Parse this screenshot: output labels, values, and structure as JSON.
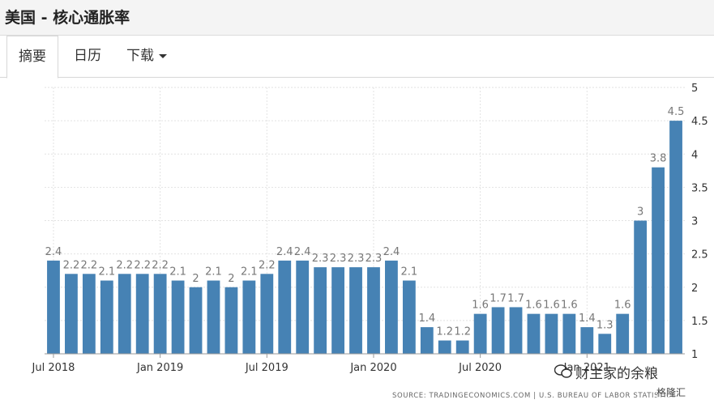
{
  "page": {
    "title": "美国 - 核心通胀率"
  },
  "tabs": [
    {
      "label": "摘要",
      "active": true
    },
    {
      "label": "日历",
      "active": false
    },
    {
      "label": "下载",
      "active": false
    }
  ],
  "chart_data": {
    "type": "bar",
    "title": "",
    "xlabel": "",
    "ylabel": "",
    "ylim": [
      1,
      5
    ],
    "y_ticks": [
      1,
      1.5,
      2,
      2.5,
      3,
      3.5,
      4,
      4.5,
      5
    ],
    "y_axis_side": "right",
    "grid": true,
    "bar_color": "#4682b4",
    "categories": [
      "2018-07",
      "2018-08",
      "2018-09",
      "2018-10",
      "2018-11",
      "2018-12",
      "2019-01",
      "2019-02",
      "2019-03",
      "2019-04",
      "2019-05",
      "2019-06",
      "2019-07",
      "2019-08",
      "2019-09",
      "2019-10",
      "2019-11",
      "2019-12",
      "2020-01",
      "2020-02",
      "2020-03",
      "2020-04",
      "2020-05",
      "2020-06",
      "2020-07",
      "2020-08",
      "2020-09",
      "2020-10",
      "2020-11",
      "2020-12",
      "2021-01",
      "2021-02",
      "2021-03",
      "2021-04",
      "2021-05",
      "2021-06"
    ],
    "values": [
      2.4,
      2.2,
      2.2,
      2.1,
      2.2,
      2.2,
      2.2,
      2.1,
      2.0,
      2.1,
      2.0,
      2.1,
      2.2,
      2.4,
      2.4,
      2.3,
      2.3,
      2.3,
      2.3,
      2.4,
      2.1,
      1.4,
      1.2,
      1.2,
      1.6,
      1.7,
      1.7,
      1.6,
      1.6,
      1.6,
      1.4,
      1.3,
      1.6,
      3.0,
      3.8,
      4.5
    ],
    "data_labels": [
      "2.4",
      "2.2",
      "2.2",
      "2.1",
      "2.2",
      "2.2",
      "2.2",
      "2.1",
      "2",
      "2.1",
      "2",
      "2.1",
      "2.2",
      "2.4",
      "2.4",
      "2.3",
      "2.3",
      "2.3",
      "2.3",
      "2.4",
      "2.1",
      "1.4",
      "1.2",
      "1.2",
      "1.6",
      "1.7",
      "1.7",
      "1.6",
      "1.6",
      "1.6",
      "1.4",
      "1.3",
      "1.6",
      "3",
      "3.8",
      "4.5"
    ],
    "x_tick_labels": [
      {
        "index": 0,
        "label": "Jul 2018"
      },
      {
        "index": 6,
        "label": "Jan 2019"
      },
      {
        "index": 12,
        "label": "Jul 2019"
      },
      {
        "index": 18,
        "label": "Jan 2020"
      },
      {
        "index": 24,
        "label": "Jul 2020"
      },
      {
        "index": 30,
        "label": "Jan 2021"
      }
    ]
  },
  "footer": {
    "source": "SOURCE: TRADINGECONOMICS.COM | U.S. BUREAU OF LABOR STATISTICS",
    "watermark": "财主家的余粮",
    "watermark_logo": "格隆汇"
  }
}
